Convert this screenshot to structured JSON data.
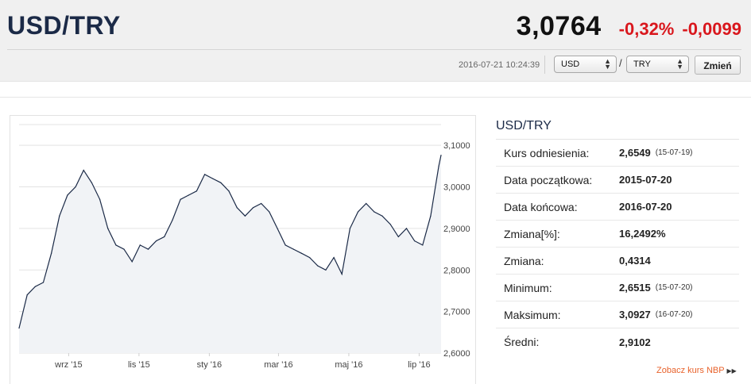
{
  "header": {
    "pair": "USD/TRY",
    "rate": "3,0764",
    "change_pct": "-0,32%",
    "change_abs": "-0,0099",
    "timestamp": "2016-07-21 10:24:39",
    "from_currency": "USD",
    "to_currency": "TRY",
    "slash": "/",
    "submit_label": "Zmień",
    "change_color": "#d9171d"
  },
  "stats": {
    "title": "USD/TRY",
    "rows": [
      {
        "label": "Kurs odniesienia:",
        "value": "2,6549",
        "date": "(15-07-19)"
      },
      {
        "label": "Data początkowa:",
        "value": "2015-07-20",
        "date": ""
      },
      {
        "label": "Data końcowa:",
        "value": "2016-07-20",
        "date": ""
      },
      {
        "label": "Zmiana[%]:",
        "value": "16,2492%",
        "date": ""
      },
      {
        "label": "Zmiana:",
        "value": "0,4314",
        "date": ""
      },
      {
        "label": "Minimum:",
        "value": "2,6515",
        "date": "(15-07-20)"
      },
      {
        "label": "Maksimum:",
        "value": "3,0927",
        "date": "(16-07-20)"
      },
      {
        "label": "Średni:",
        "value": "2,9102",
        "date": ""
      }
    ],
    "nbp_link": "Zobacz kurs NBP",
    "nbp_icon": "double-chevron-right-icon"
  },
  "chart_data": {
    "type": "area",
    "x_ticks": [
      "wrz '15",
      "lis '15",
      "sty '16",
      "mar '16",
      "maj '16",
      "lip '16"
    ],
    "y_ticks": [
      "3,1000",
      "3,0000",
      "2,9000",
      "2,8000",
      "2,7000",
      "2,6000"
    ],
    "ylim": [
      2.6,
      3.15
    ],
    "grid": true,
    "line_color": "#1b2a47",
    "fill_color": "#f1f3f6",
    "x": [
      "2015-07-20",
      "2015-07-27",
      "2015-08-03",
      "2015-08-10",
      "2015-08-17",
      "2015-08-24",
      "2015-08-31",
      "2015-09-07",
      "2015-09-14",
      "2015-09-21",
      "2015-09-28",
      "2015-10-05",
      "2015-10-12",
      "2015-10-19",
      "2015-10-26",
      "2015-11-02",
      "2015-11-09",
      "2015-11-16",
      "2015-11-23",
      "2015-11-30",
      "2015-12-07",
      "2015-12-14",
      "2015-12-21",
      "2015-12-28",
      "2016-01-04",
      "2016-01-11",
      "2016-01-18",
      "2016-01-25",
      "2016-02-01",
      "2016-02-08",
      "2016-02-15",
      "2016-02-22",
      "2016-02-29",
      "2016-03-07",
      "2016-03-14",
      "2016-03-21",
      "2016-03-28",
      "2016-04-04",
      "2016-04-11",
      "2016-04-18",
      "2016-04-25",
      "2016-05-02",
      "2016-05-09",
      "2016-05-16",
      "2016-05-23",
      "2016-05-30",
      "2016-06-06",
      "2016-06-13",
      "2016-06-20",
      "2016-06-27",
      "2016-07-04",
      "2016-07-11",
      "2016-07-18",
      "2016-07-20"
    ],
    "values": [
      2.66,
      2.74,
      2.76,
      2.77,
      2.84,
      2.93,
      2.98,
      3.0,
      3.04,
      3.01,
      2.97,
      2.9,
      2.86,
      2.85,
      2.82,
      2.86,
      2.85,
      2.87,
      2.88,
      2.92,
      2.97,
      2.98,
      2.99,
      3.03,
      3.02,
      3.01,
      2.99,
      2.95,
      2.93,
      2.95,
      2.96,
      2.94,
      2.9,
      2.86,
      2.85,
      2.84,
      2.83,
      2.81,
      2.8,
      2.83,
      2.79,
      2.9,
      2.94,
      2.96,
      2.94,
      2.93,
      2.91,
      2.88,
      2.9,
      2.87,
      2.86,
      2.93,
      3.05,
      3.0764
    ]
  }
}
